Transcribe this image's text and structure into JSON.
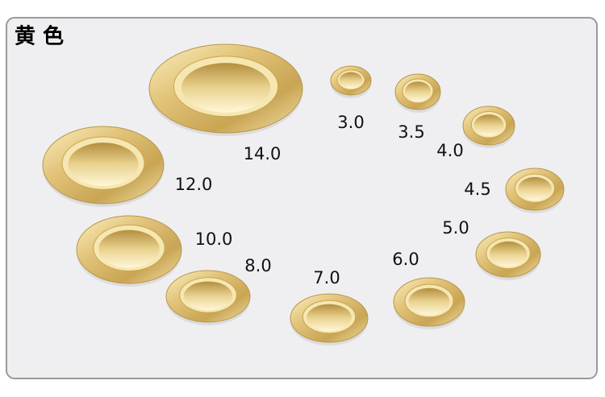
{
  "header": {
    "title": "黄 色"
  },
  "eyelets": [
    {
      "label": "14.0"
    },
    {
      "label": "12.0"
    },
    {
      "label": "10.0"
    },
    {
      "label": "8.0"
    },
    {
      "label": "7.0"
    },
    {
      "label": "6.0"
    },
    {
      "label": "5.0"
    },
    {
      "label": "4.5"
    },
    {
      "label": "4.0"
    },
    {
      "label": "3.5"
    },
    {
      "label": "3.0"
    }
  ]
}
